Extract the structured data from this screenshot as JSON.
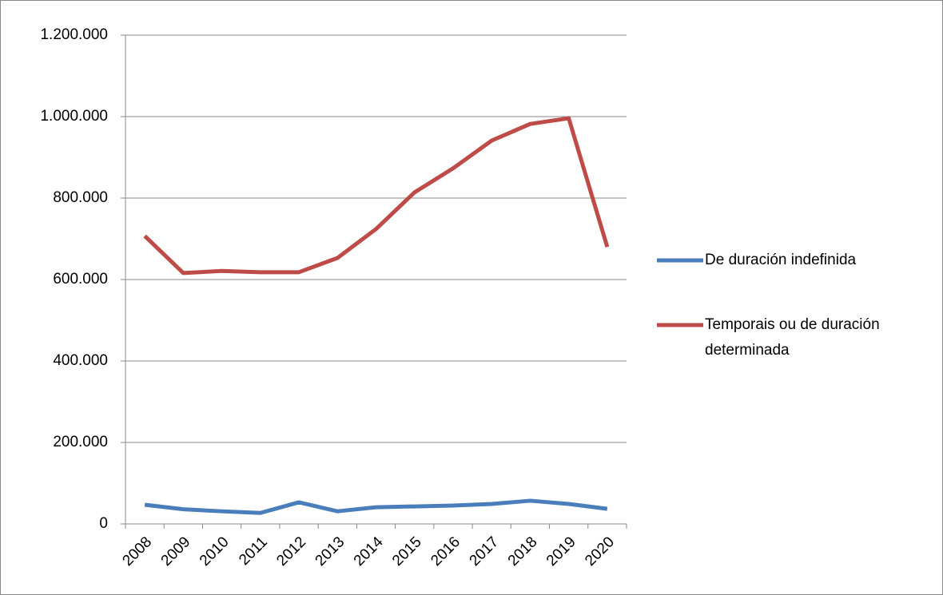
{
  "chart_data": {
    "type": "line",
    "categories": [
      "2008",
      "2009",
      "2010",
      "2011",
      "2012",
      "2013",
      "2014",
      "2015",
      "2016",
      "2017",
      "2018",
      "2019",
      "2020"
    ],
    "series": [
      {
        "name": "De duración indefinida",
        "color": "#4a7ebb",
        "values": [
          47000,
          36000,
          31000,
          27000,
          53000,
          31000,
          41000,
          43000,
          45000,
          49000,
          57000,
          49000,
          37000
        ]
      },
      {
        "name": "Temporais ou de duración determinada",
        "color": "#be4b48",
        "values": [
          707000,
          616000,
          621000,
          618000,
          618000,
          653000,
          724000,
          814000,
          873000,
          941000,
          982000,
          996000,
          680000
        ]
      }
    ],
    "ylim": [
      0,
      1200000
    ],
    "yticks": [
      0,
      {
        "value": 200000,
        "label": "200.000"
      },
      {
        "value": 400000,
        "label": "400.000"
      },
      {
        "value": 600000,
        "label": "600.000"
      },
      {
        "value": 800000,
        "label": "800.000"
      },
      {
        "value": 1000000,
        "label": "1.000.000"
      },
      {
        "value": 1200000,
        "label": "1.200.000"
      }
    ],
    "grid": true,
    "legend": "right"
  }
}
